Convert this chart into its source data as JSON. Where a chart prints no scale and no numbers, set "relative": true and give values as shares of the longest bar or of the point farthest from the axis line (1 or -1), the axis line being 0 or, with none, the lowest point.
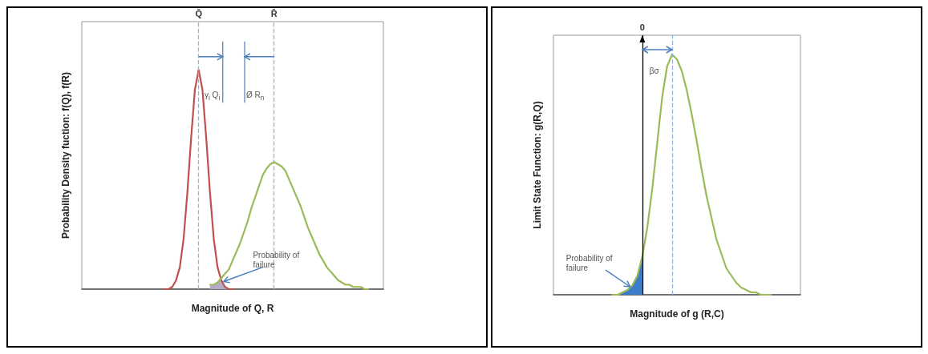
{
  "chart_data": [
    {
      "type": "line",
      "relative": true,
      "xlabel": "Magnitude of Q, R",
      "ylabel": "Probability Density fuction: f(Q), f(R)",
      "marker": "none",
      "categories": [
        null,
        null,
        null,
        null,
        null,
        null,
        null,
        null,
        null,
        null,
        null,
        null,
        null,
        null,
        null,
        null,
        null,
        null,
        null,
        null,
        null,
        null,
        null,
        null,
        null,
        null,
        null,
        null,
        null,
        null,
        null,
        null,
        null,
        null,
        null,
        null,
        null,
        null,
        null,
        null,
        null,
        null,
        null,
        null,
        null,
        null,
        null,
        null,
        null,
        null,
        null,
        null,
        null,
        null,
        null,
        null,
        null,
        null,
        null,
        null,
        null,
        null,
        null,
        null,
        null,
        null,
        null,
        null,
        null,
        null,
        null,
        null,
        null,
        null,
        null,
        null,
        null,
        null,
        null,
        null,
        null
      ],
      "series": [
        {
          "color": "#c0504d",
          "values": [
            null,
            null,
            null,
            null,
            null,
            null,
            null,
            null,
            null,
            null,
            null,
            null,
            null,
            null,
            null,
            null,
            null,
            null,
            null,
            null,
            null,
            null,
            0,
            0,
            0.01,
            0.04,
            0.1,
            0.23,
            0.44,
            0.69,
            0.91,
            1,
            0.91,
            0.69,
            0.44,
            0.23,
            0.1,
            0.04,
            0.01,
            0,
            0,
            null,
            null,
            null,
            null,
            null,
            null,
            null,
            null,
            null,
            null,
            null,
            null,
            null,
            null,
            null,
            null,
            null,
            null,
            null,
            null,
            null,
            null,
            null,
            null,
            null,
            null,
            null,
            null,
            null,
            null,
            null,
            null,
            null,
            null,
            null,
            null,
            null,
            null,
            null,
            null
          ]
        },
        {
          "color": "#9bbb59",
          "values": [
            null,
            null,
            null,
            null,
            null,
            null,
            null,
            null,
            null,
            null,
            null,
            null,
            null,
            null,
            null,
            null,
            null,
            null,
            null,
            null,
            null,
            null,
            null,
            null,
            null,
            null,
            null,
            null,
            null,
            null,
            null,
            null,
            null,
            null,
            0.02,
            0.02,
            0.03,
            0.05,
            0.07,
            0.09,
            0.13,
            0.17,
            0.21,
            0.26,
            0.31,
            0.37,
            0.42,
            0.47,
            0.52,
            0.55,
            0.57,
            0.58,
            0.57,
            0.56,
            0.54,
            0.5,
            0.46,
            0.42,
            0.38,
            0.33,
            0.28,
            0.24,
            0.2,
            0.16,
            0.13,
            0.1,
            0.08,
            0.06,
            0.04,
            0.03,
            0.02,
            0.02,
            0.01,
            0.01,
            0.01,
            0,
            0,
            null,
            null,
            null,
            null
          ]
        },
        {
          "type": "area",
          "color": "#b4aac8",
          "values": [
            null,
            null,
            null,
            null,
            null,
            null,
            null,
            null,
            null,
            null,
            null,
            null,
            null,
            null,
            null,
            null,
            null,
            null,
            null,
            null,
            null,
            null,
            null,
            null,
            null,
            null,
            null,
            null,
            null,
            null,
            null,
            null,
            null,
            null,
            0.02,
            0.02,
            0.03,
            0.04,
            0.01,
            0,
            0,
            null,
            null,
            null,
            null,
            null,
            null,
            null,
            null,
            null,
            null,
            null,
            null,
            null,
            null,
            null,
            null,
            null,
            null,
            null,
            null,
            null,
            null,
            null,
            null,
            null,
            null,
            null,
            null,
            null,
            null,
            null,
            null,
            null,
            null,
            null,
            null,
            null,
            null,
            null,
            null
          ]
        }
      ],
      "ref_lines": [
        {
          "axis": "x",
          "label": "Q̄",
          "color": "#8db4e2",
          "line_style": "dashed"
        },
        {
          "axis": "x",
          "label": "R̄",
          "color": "#8db4e2",
          "line_style": "dashed"
        }
      ],
      "annotations": [
        "γ$_{i}$ Q$_{i}$",
        "Ø R$_{n}$",
        "Probability of failure"
      ]
    },
    {
      "type": "line",
      "relative": true,
      "xlabel": "Magnitude of g (R,C)",
      "ylabel": "Limit State Function: g(R,Q)",
      "marker": "none",
      "categories": [
        null,
        null,
        null,
        null,
        null,
        null,
        null,
        null,
        null,
        null,
        null,
        null,
        null,
        null,
        null,
        null,
        null,
        null,
        null,
        null,
        null,
        null,
        null,
        null,
        null,
        null,
        null,
        null,
        null,
        null,
        null,
        null,
        null,
        null,
        null,
        null,
        null,
        null,
        null,
        null,
        null,
        null,
        null,
        null,
        null,
        null,
        null,
        null,
        null,
        null,
        null
      ],
      "series": [
        {
          "color": "#9bbb59",
          "values": [
            null,
            null,
            null,
            null,
            null,
            null,
            null,
            null,
            null,
            null,
            null,
            null,
            0,
            0,
            0.01,
            0.02,
            0.04,
            0.08,
            0.16,
            0.28,
            0.44,
            0.63,
            0.82,
            0.95,
            1,
            0.98,
            0.93,
            0.85,
            0.75,
            0.64,
            0.52,
            0.41,
            0.32,
            0.23,
            0.17,
            0.11,
            0.08,
            0.05,
            0.03,
            0.02,
            0.01,
            0.01,
            0,
            0,
            0,
            null,
            null,
            null,
            null,
            null,
            null
          ]
        },
        {
          "type": "area",
          "color": "#3d7cc9",
          "values": [
            null,
            null,
            null,
            null,
            null,
            null,
            null,
            null,
            null,
            null,
            null,
            null,
            0,
            0,
            0.01,
            0.02,
            0.04,
            0.08,
            0.16,
            null,
            null,
            null,
            null,
            null,
            null,
            null,
            null,
            null,
            null,
            null,
            null,
            null,
            null,
            null,
            null,
            null,
            null,
            null,
            null,
            null,
            null,
            null,
            null,
            null,
            null,
            null,
            null,
            null,
            null,
            null,
            null
          ]
        }
      ],
      "ref_lines": [
        {
          "axis": "x",
          "label": "0",
          "color": "#000000",
          "line_style": "solid"
        },
        {
          "axis": "x",
          "color": "#8db4e2",
          "line_style": "dashed"
        }
      ],
      "annotations": [
        "βσ",
        "Probability of failure"
      ]
    }
  ]
}
